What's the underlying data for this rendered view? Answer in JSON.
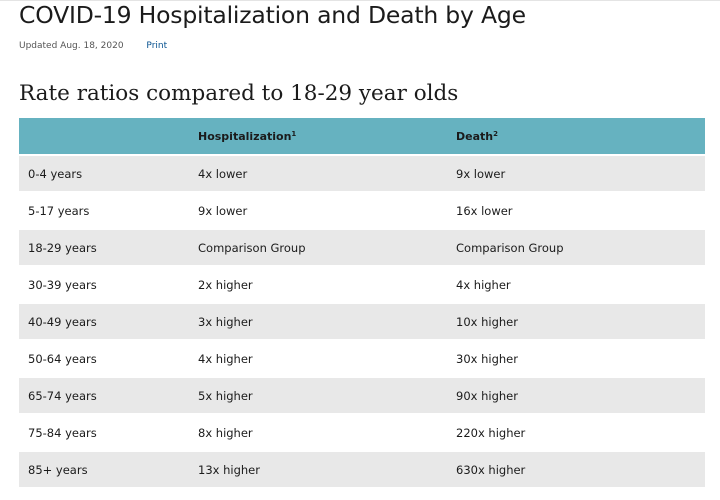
{
  "page": {
    "title": "COVID-19 Hospitalization and Death by Age",
    "updated": "Updated Aug. 18, 2020",
    "print_label": "Print"
  },
  "section": {
    "heading": "Rate ratios compared to 18-29 year olds"
  },
  "table": {
    "headers": {
      "age": "",
      "hospitalization": "Hospitalization",
      "hospitalization_note": "1",
      "death": "Death",
      "death_note": "2"
    },
    "rows": [
      {
        "age": "0-4 years",
        "hospitalization": "4x lower",
        "death": "9x lower"
      },
      {
        "age": "5-17 years",
        "hospitalization": "9x lower",
        "death": "16x lower"
      },
      {
        "age": "18-29 years",
        "hospitalization": "Comparison Group",
        "death": "Comparison Group"
      },
      {
        "age": "30-39 years",
        "hospitalization": "2x higher",
        "death": "4x higher"
      },
      {
        "age": "40-49 years",
        "hospitalization": "3x higher",
        "death": "10x higher"
      },
      {
        "age": "50-64 years",
        "hospitalization": "4x higher",
        "death": "30x higher"
      },
      {
        "age": "65-74 years",
        "hospitalization": "5x higher",
        "death": "90x higher"
      },
      {
        "age": "75-84 years",
        "hospitalization": "8x higher",
        "death": "220x higher"
      },
      {
        "age": "85+ years",
        "hospitalization": "13x higher",
        "death": "630x higher"
      }
    ]
  },
  "colors": {
    "header_bg": "#66b2c0",
    "row_stripe": "#e8e8e8",
    "link": "#075290"
  }
}
